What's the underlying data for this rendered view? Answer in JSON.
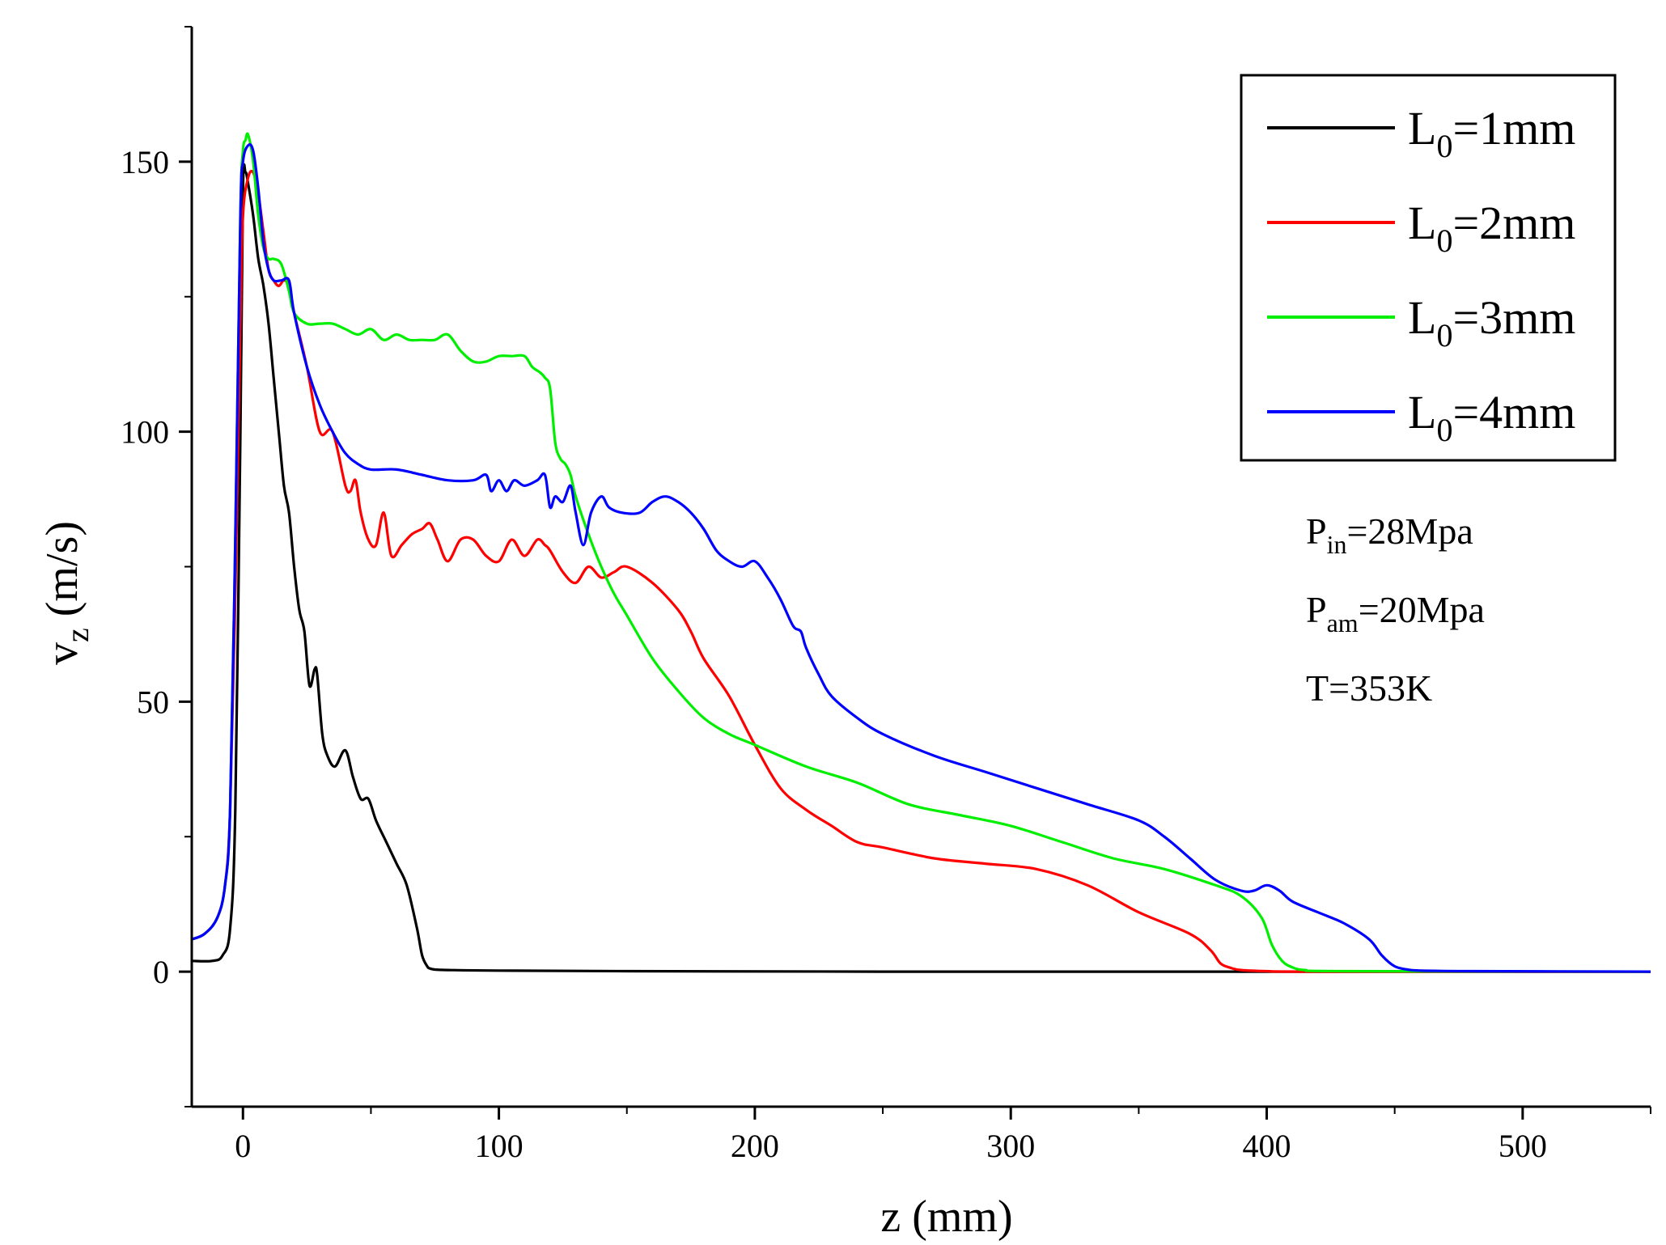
{
  "chart_data": {
    "type": "line",
    "title": "",
    "xlabel": "z (mm)",
    "ylabel": {
      "main": "v",
      "sub": "z",
      "unit": " (m/s)"
    },
    "xlim": [
      -20,
      550
    ],
    "ylim": [
      -25,
      175
    ],
    "xticks": [
      0,
      100,
      200,
      300,
      400,
      500
    ],
    "yticks": [
      0,
      50,
      100,
      150
    ],
    "legend_position": "top-right",
    "series": [
      {
        "name": "L0=1mm",
        "label": {
          "main": "L",
          "sub": "0",
          "rest": "=1mm"
        },
        "color": "#000000",
        "x": [
          -20,
          -12,
          -8,
          -5,
          -3,
          -1,
          0,
          1,
          2,
          4,
          6,
          8,
          10,
          12,
          14,
          16,
          18,
          20,
          22,
          24,
          26,
          28,
          29,
          31,
          33,
          36,
          40,
          43,
          46,
          49,
          52,
          56,
          60,
          64,
          68,
          70,
          72,
          73,
          75,
          80,
          100,
          150,
          250,
          400,
          550
        ],
        "y": [
          2,
          2,
          3,
          8,
          30,
          100,
          145,
          148,
          146,
          140,
          132,
          127,
          120,
          110,
          100,
          90,
          85,
          75,
          67,
          63,
          53,
          56,
          55,
          44,
          40,
          38,
          41,
          36,
          32,
          32,
          28,
          24,
          20,
          16,
          8,
          3,
          1,
          0.6,
          0.4,
          0.3,
          0.2,
          0.1,
          0,
          0,
          0
        ]
      },
      {
        "name": "L0=2mm",
        "label": {
          "main": "L",
          "sub": "0",
          "rest": "=2mm"
        },
        "color": "#ff0000",
        "x": [
          -20,
          -15,
          -10,
          -7,
          -5,
          -3,
          -1,
          0,
          2,
          4,
          6,
          8,
          10,
          12,
          14,
          16,
          18,
          20,
          25,
          30,
          35,
          40,
          42,
          44,
          46,
          49,
          52,
          55,
          58,
          62,
          66,
          70,
          73,
          76,
          80,
          85,
          90,
          95,
          100,
          105,
          110,
          115,
          118,
          120,
          125,
          130,
          135,
          140,
          145,
          150,
          160,
          170,
          175,
          180,
          190,
          200,
          210,
          220,
          230,
          240,
          250,
          270,
          290,
          310,
          330,
          350,
          370,
          378,
          382,
          386,
          390,
          400,
          420,
          550
        ],
        "y": [
          6,
          7,
          10,
          16,
          30,
          70,
          120,
          140,
          147,
          148,
          144,
          137,
          130,
          128,
          127,
          128,
          127,
          122,
          112,
          100,
          100,
          90,
          89,
          91,
          85,
          80,
          79,
          85,
          77,
          79,
          81,
          82,
          83,
          80,
          76,
          80,
          80,
          77,
          76,
          80,
          77,
          80,
          79,
          78,
          74,
          72,
          75,
          73,
          74,
          75,
          72,
          67,
          63,
          58,
          51,
          42,
          34,
          30,
          27,
          24,
          23,
          21,
          20,
          19,
          16,
          11,
          7,
          4,
          1.5,
          0.7,
          0.3,
          0.1,
          0,
          0
        ]
      },
      {
        "name": "L0=3mm",
        "label": {
          "main": "L",
          "sub": "0",
          "rest": "=3mm"
        },
        "color": "#00ee00",
        "x": [
          -20,
          -15,
          -10,
          -7,
          -5,
          -3,
          -1,
          0,
          1,
          2,
          4,
          6,
          8,
          10,
          12,
          15,
          18,
          20,
          25,
          30,
          35,
          40,
          45,
          50,
          55,
          60,
          65,
          70,
          75,
          80,
          85,
          90,
          95,
          100,
          105,
          110,
          113,
          116,
          118,
          120,
          122,
          124,
          126,
          128,
          130,
          135,
          140,
          145,
          150,
          160,
          170,
          180,
          190,
          200,
          220,
          240,
          260,
          280,
          300,
          320,
          340,
          360,
          380,
          390,
          398,
          402,
          406,
          410,
          415,
          430,
          550
        ],
        "y": [
          6,
          7,
          10,
          16,
          30,
          80,
          140,
          152,
          154,
          155,
          150,
          140,
          134,
          132,
          132,
          131,
          126,
          122,
          120,
          120,
          120,
          119,
          118,
          119,
          117,
          118,
          117,
          117,
          117,
          118,
          115,
          113,
          113,
          114,
          114,
          114,
          112,
          111,
          110,
          108,
          98,
          95,
          94,
          92,
          88,
          81,
          75,
          70,
          66,
          58,
          52,
          47,
          44,
          42,
          38,
          35,
          31,
          29,
          27,
          24,
          21,
          19,
          16,
          14,
          10,
          5,
          2,
          0.8,
          0.3,
          0.1,
          0
        ]
      },
      {
        "name": "L0=4mm",
        "label": {
          "main": "L",
          "sub": "0",
          "rest": "=4mm"
        },
        "color": "#0000ff",
        "x": [
          -20,
          -15,
          -10,
          -7,
          -5,
          -3,
          -1,
          0,
          2,
          4,
          6,
          8,
          10,
          12,
          15,
          18,
          20,
          25,
          30,
          35,
          40,
          45,
          50,
          60,
          70,
          80,
          90,
          95,
          97,
          100,
          103,
          106,
          110,
          115,
          118,
          120,
          122,
          125,
          128,
          130,
          133,
          136,
          140,
          143,
          148,
          155,
          160,
          165,
          170,
          175,
          180,
          185,
          190,
          195,
          200,
          205,
          210,
          215,
          218,
          220,
          225,
          230,
          240,
          250,
          270,
          290,
          310,
          330,
          350,
          360,
          370,
          380,
          390,
          395,
          400,
          405,
          410,
          420,
          430,
          440,
          445,
          450,
          455,
          460,
          480,
          550
        ],
        "y": [
          6,
          7,
          10,
          16,
          30,
          80,
          140,
          150,
          153,
          152,
          145,
          135,
          130,
          128,
          128,
          128,
          122,
          112,
          105,
          100,
          96,
          94,
          93,
          93,
          92,
          91,
          91,
          92,
          89,
          91,
          89,
          91,
          90,
          91,
          92,
          86,
          88,
          87,
          90,
          85,
          79,
          85,
          88,
          86,
          85,
          85,
          87,
          88,
          87,
          85,
          82,
          78,
          76,
          75,
          76,
          73,
          69,
          64,
          63,
          60,
          55,
          51,
          47,
          44,
          40,
          37,
          34,
          31,
          28,
          25,
          21,
          17,
          15,
          15,
          16,
          15,
          13,
          11,
          9,
          6,
          3,
          1,
          0.4,
          0.2,
          0.1,
          0
        ]
      }
    ],
    "annotations": [
      {
        "main": "P",
        "sub": "in",
        "rest": "=28Mpa"
      },
      {
        "main": "P",
        "sub": "am",
        "rest": "=20Mpa"
      },
      {
        "main": "T",
        "sub": "",
        "rest": "=353K"
      }
    ]
  }
}
